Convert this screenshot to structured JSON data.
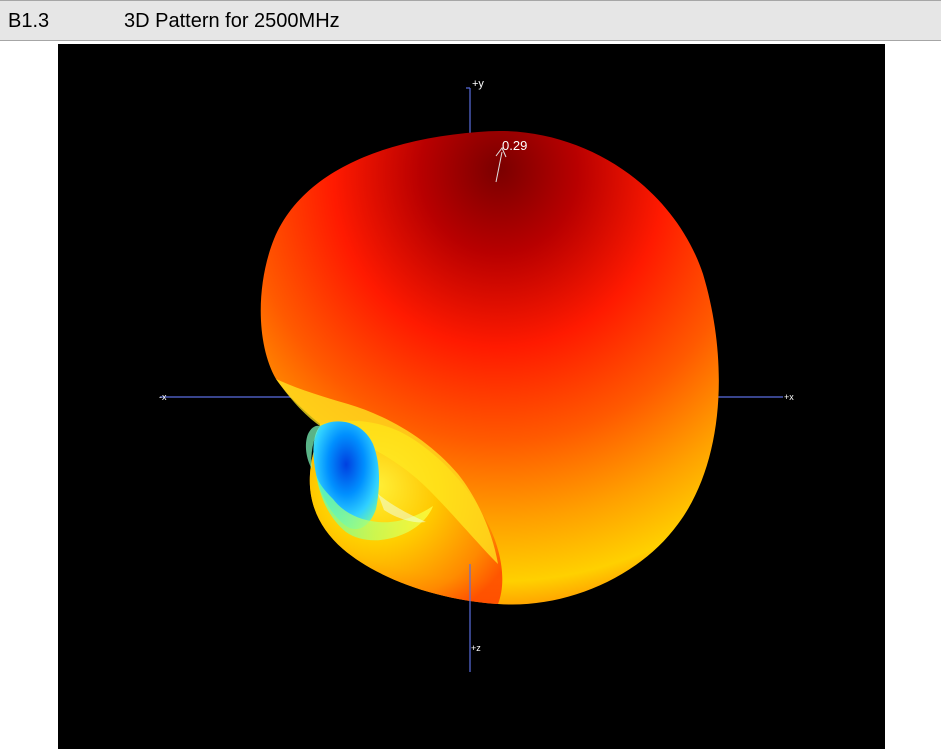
{
  "section": {
    "number": "B1.3",
    "title": "3D Pattern for 2500MHz"
  },
  "pattern": {
    "axis_labels": {
      "y_pos": "+y",
      "x_neg": "-x",
      "x_pos": "+x",
      "z_pos": "+z"
    },
    "max_value": "0.29",
    "colors": {
      "background": "#000000",
      "axis": "#5a6ee0",
      "max": "#8a0000",
      "high": "#ff2a00",
      "mid": "#ffb400",
      "low": "#ffff30",
      "min": "#0060ff"
    }
  }
}
